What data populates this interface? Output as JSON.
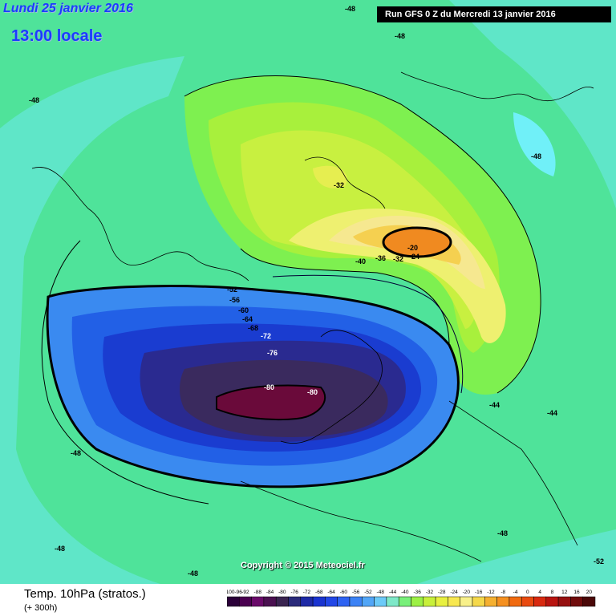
{
  "header": {
    "date_label": "Lundi 25 janvier 2016",
    "time_label": "13:00 locale",
    "run_label": "Run GFS 0 Z du Mercredi 13 janvier 2016"
  },
  "copyright": "Copyright © 2015 Meteociel.fr",
  "legend": {
    "title": "Temp. 10hPa (stratos.)",
    "subtitle": "(+ 300h)",
    "scale_labels": [
      "-100-96",
      "-92",
      "-88",
      "-84",
      "-80",
      "-76",
      "-72",
      "-68",
      "-64",
      "-60",
      "-56",
      "-52",
      "-48",
      "-44",
      "-40",
      "-36",
      "-32",
      "-28",
      "-24",
      "-20",
      "-16",
      "-12",
      "-8",
      "-4",
      "0",
      "4",
      "8",
      "12",
      "16",
      "20"
    ],
    "scale_colors": [
      "#2a0038",
      "#4a0050",
      "#6a0a6a",
      "#4a1050",
      "#3a2450",
      "#2a2a7a",
      "#1e2aa6",
      "#1a34d0",
      "#2247e6",
      "#2e63f2",
      "#3c82f5",
      "#52a6f7",
      "#6ccaf8",
      "#7ee8c8",
      "#78f07a",
      "#9cf044",
      "#c8f03a",
      "#e8f040",
      "#f8e850",
      "#f8f08a",
      "#f5d84a",
      "#f5b030",
      "#f59020",
      "#f06a10",
      "#e84a10",
      "#d82a10",
      "#b81410",
      "#961010",
      "#700c0c",
      "#4a0808"
    ]
  },
  "map_labels": {
    "values": [
      "-48",
      "-48",
      "-48",
      "-48",
      "-48",
      "-48",
      "-48",
      "-48",
      "-44",
      "-44",
      "-52",
      "-32",
      "-20",
      "-24",
      "-32",
      "-36",
      "-40",
      "-52",
      "-56",
      "-60",
      "-64",
      "-68",
      "-72",
      "-76",
      "-80",
      "-80"
    ],
    "colors": {
      "background_cyan": "#66e8f5",
      "outer_green": "#55f099",
      "cold_pole_purple": "#6a0a3a"
    }
  }
}
